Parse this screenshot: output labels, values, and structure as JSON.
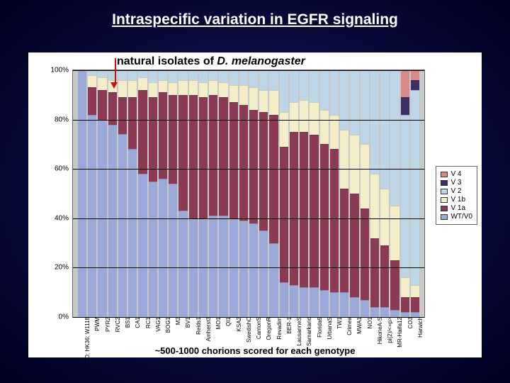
{
  "title": "Intraspecific variation in EGFR signaling",
  "chart": {
    "type": "stacked-bar",
    "title": "natural isolates of ",
    "title_italic": "D. melanogaster",
    "x_axis_title": "~500-1000 chorions scored for each genotype",
    "background_color": "#ffffff",
    "plot_bg_color": "#c8c8c8",
    "grid_color": "#000000",
    "ylim": [
      0,
      100
    ],
    "ytick_step": 20,
    "ytick_labels": [
      "0%",
      "20%",
      "40%",
      "60%",
      "80%",
      "100%"
    ],
    "arrow_color": "#cc1111",
    "arrow_points_to_index": 3,
    "legend_order": [
      "V 4",
      "V 3",
      "V 2",
      "V 1b",
      "V 1a",
      "WT/V0"
    ],
    "series_colors": {
      "WT/V0": "#9aa9d8",
      "V 1a": "#8a3a52",
      "V 1b": "#f4eec8",
      "V 2": "#bcd6e8",
      "V 3": "#3a3266",
      "V 4": "#d88a8a"
    },
    "label_fontsize": 10,
    "xlabel_fontsize": 8,
    "categories": [
      "CO; HK36: W1118",
      "PWM",
      "PYR2",
      "RVC2",
      "BS1",
      "CA1",
      "RC1",
      "VAG1",
      "BOG1",
      "M2",
      "BV1",
      "Reids1",
      "Amherst3",
      "MO1",
      "QI1",
      "KSA2",
      "SwedishC",
      "CantonS",
      "OregonR",
      "Revadim",
      "BER-1",
      "LausanneS",
      "Samarkand",
      "Florida9",
      "UrbanaS",
      "TW1",
      "Crimea",
      "MWA1",
      "NO1",
      "HikoneA-S",
      "pi(2)/<=p>",
      "MR-Haifa12",
      "CO3",
      "Harwich"
    ],
    "stacks": [
      {
        "WT/V0": 100,
        "V 1a": 0,
        "V 1b": 0,
        "V 2": 0,
        "V 3": 0,
        "V 4": 0
      },
      {
        "WT/V0": 82,
        "V 1a": 11,
        "V 1b": 5,
        "V 2": 2,
        "V 3": 0,
        "V 4": 0
      },
      {
        "WT/V0": 80,
        "V 1a": 12,
        "V 1b": 5,
        "V 2": 3,
        "V 3": 0,
        "V 4": 0
      },
      {
        "WT/V0": 78,
        "V 1a": 13,
        "V 1b": 5,
        "V 2": 4,
        "V 3": 0,
        "V 4": 0
      },
      {
        "WT/V0": 74,
        "V 1a": 15,
        "V 1b": 7,
        "V 2": 4,
        "V 3": 0,
        "V 4": 0
      },
      {
        "WT/V0": 68,
        "V 1a": 21,
        "V 1b": 7,
        "V 2": 4,
        "V 3": 0,
        "V 4": 0
      },
      {
        "WT/V0": 58,
        "V 1a": 34,
        "V 1b": 5,
        "V 2": 3,
        "V 3": 0,
        "V 4": 0
      },
      {
        "WT/V0": 55,
        "V 1a": 34,
        "V 1b": 6,
        "V 2": 5,
        "V 3": 0,
        "V 4": 0
      },
      {
        "WT/V0": 56,
        "V 1a": 35,
        "V 1b": 5,
        "V 2": 4,
        "V 3": 0,
        "V 4": 0
      },
      {
        "WT/V0": 54,
        "V 1a": 36,
        "V 1b": 5,
        "V 2": 5,
        "V 3": 0,
        "V 4": 0
      },
      {
        "WT/V0": 43,
        "V 1a": 47,
        "V 1b": 6,
        "V 2": 4,
        "V 3": 0,
        "V 4": 0
      },
      {
        "WT/V0": 40,
        "V 1a": 50,
        "V 1b": 6,
        "V 2": 4,
        "V 3": 0,
        "V 4": 0
      },
      {
        "WT/V0": 40,
        "V 1a": 49,
        "V 1b": 6,
        "V 2": 5,
        "V 3": 0,
        "V 4": 0
      },
      {
        "WT/V0": 41,
        "V 1a": 49,
        "V 1b": 6,
        "V 2": 4,
        "V 3": 0,
        "V 4": 0
      },
      {
        "WT/V0": 41,
        "V 1a": 48,
        "V 1b": 6,
        "V 2": 5,
        "V 3": 0,
        "V 4": 0
      },
      {
        "WT/V0": 40,
        "V 1a": 47,
        "V 1b": 7,
        "V 2": 6,
        "V 3": 0,
        "V 4": 0
      },
      {
        "WT/V0": 39,
        "V 1a": 47,
        "V 1b": 8,
        "V 2": 6,
        "V 3": 0,
        "V 4": 0
      },
      {
        "WT/V0": 38,
        "V 1a": 46,
        "V 1b": 9,
        "V 2": 7,
        "V 3": 0,
        "V 4": 0
      },
      {
        "WT/V0": 35,
        "V 1a": 48,
        "V 1b": 9,
        "V 2": 8,
        "V 3": 0,
        "V 4": 0
      },
      {
        "WT/V0": 30,
        "V 1a": 52,
        "V 1b": 10,
        "V 2": 8,
        "V 3": 0,
        "V 4": 0
      },
      {
        "WT/V0": 14,
        "V 1a": 55,
        "V 1b": 14,
        "V 2": 17,
        "V 3": 0,
        "V 4": 0
      },
      {
        "WT/V0": 13,
        "V 1a": 62,
        "V 1b": 12,
        "V 2": 13,
        "V 3": 0,
        "V 4": 0
      },
      {
        "WT/V0": 12,
        "V 1a": 63,
        "V 1b": 13,
        "V 2": 12,
        "V 3": 0,
        "V 4": 0
      },
      {
        "WT/V0": 12,
        "V 1a": 62,
        "V 1b": 13,
        "V 2": 13,
        "V 3": 0,
        "V 4": 0
      },
      {
        "WT/V0": 11,
        "V 1a": 59,
        "V 1b": 14,
        "V 2": 16,
        "V 3": 0,
        "V 4": 0
      },
      {
        "WT/V0": 10,
        "V 1a": 58,
        "V 1b": 14,
        "V 2": 18,
        "V 3": 0,
        "V 4": 0
      },
      {
        "WT/V0": 10,
        "V 1a": 42,
        "V 1b": 24,
        "V 2": 24,
        "V 3": 0,
        "V 4": 0
      },
      {
        "WT/V0": 8,
        "V 1a": 42,
        "V 1b": 24,
        "V 2": 26,
        "V 3": 0,
        "V 4": 0
      },
      {
        "WT/V0": 7,
        "V 1a": 37,
        "V 1b": 26,
        "V 2": 30,
        "V 3": 0,
        "V 4": 0
      },
      {
        "WT/V0": 4,
        "V 1a": 28,
        "V 1b": 26,
        "V 2": 42,
        "V 3": 0,
        "V 4": 0
      },
      {
        "WT/V0": 4,
        "V 1a": 25,
        "V 1b": 23,
        "V 2": 48,
        "V 3": 0,
        "V 4": 0
      },
      {
        "WT/V0": 3,
        "V 1a": 20,
        "V 1b": 22,
        "V 2": 55,
        "V 3": 0,
        "V 4": 0
      },
      {
        "WT/V0": 2,
        "V 1a": 6,
        "V 1b": 8,
        "V 2": 66,
        "V 3": 7,
        "V 4": 11
      },
      {
        "WT/V0": 2,
        "V 1a": 6,
        "V 1b": 5,
        "V 2": 79,
        "V 3": 4,
        "V 4": 4
      }
    ]
  }
}
